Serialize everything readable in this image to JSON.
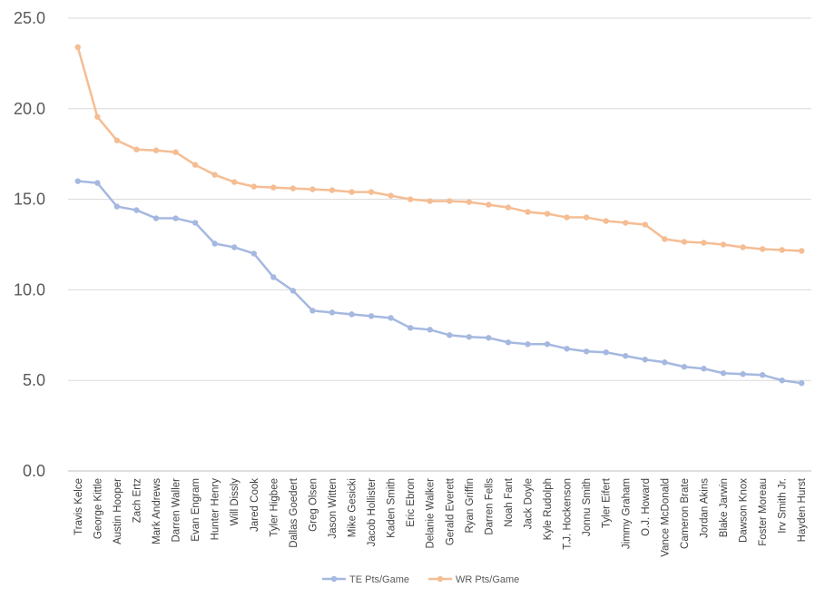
{
  "chart_data": {
    "type": "line",
    "title": "",
    "xlabel": "",
    "ylabel": "",
    "ylim": [
      0,
      25
    ],
    "yticks": [
      "0.0",
      "5.0",
      "10.0",
      "15.0",
      "20.0",
      "25.0"
    ],
    "ytick_values": [
      0,
      5,
      10,
      15,
      20,
      25
    ],
    "grid": true,
    "legend_position": "bottom",
    "categories": [
      "Travis Kelce",
      "George Kittle",
      "Austin Hooper",
      "Zach Ertz",
      "Mark Andrews",
      "Darren Waller",
      "Evan Engram",
      "Hunter Henry",
      "Will Dissly",
      "Jared Cook",
      "Tyler Higbee",
      "Dallas Goedert",
      "Greg Olsen",
      "Jason Witten",
      "Mike Gesicki",
      "Jacob Hollister",
      "Kaden Smith",
      "Eric Ebron",
      "Delanie Walker",
      "Gerald Everett",
      "Ryan Griffin",
      "Darren Fells",
      "Noah Fant",
      "Jack Doyle",
      "Kyle Rudolph",
      "T.J. Hockenson",
      "Jonnu Smith",
      "Tyler Eifert",
      "Jimmy Graham",
      "O.J. Howard",
      "Vance McDonald",
      "Cameron Brate",
      "Jordan Akins",
      "Blake Jarwin",
      "Dawson Knox",
      "Foster Moreau",
      "Irv Smith Jr.",
      "Hayden Hurst"
    ],
    "series": [
      {
        "name": "TE Pts/Game",
        "color": "#a5b8e0",
        "values": [
          16.0,
          15.9,
          14.6,
          14.4,
          13.95,
          13.95,
          13.7,
          12.55,
          12.35,
          12.0,
          10.7,
          9.95,
          8.85,
          8.75,
          8.65,
          8.55,
          8.45,
          7.9,
          7.8,
          7.5,
          7.4,
          7.35,
          7.1,
          7.0,
          7.0,
          6.75,
          6.6,
          6.55,
          6.35,
          6.15,
          6.0,
          5.75,
          5.65,
          5.4,
          5.35,
          5.3,
          5.0,
          4.85
        ]
      },
      {
        "name": "WR Pts/Game",
        "color": "#f5bd93",
        "values": [
          23.4,
          19.55,
          18.25,
          17.75,
          17.7,
          17.6,
          16.9,
          16.35,
          15.95,
          15.7,
          15.65,
          15.6,
          15.55,
          15.5,
          15.4,
          15.4,
          15.2,
          15.0,
          14.9,
          14.9,
          14.85,
          14.7,
          14.55,
          14.3,
          14.2,
          14.0,
          14.0,
          13.8,
          13.7,
          13.6,
          12.8,
          12.65,
          12.6,
          12.5,
          12.35,
          12.25,
          12.2,
          12.15
        ]
      }
    ]
  }
}
